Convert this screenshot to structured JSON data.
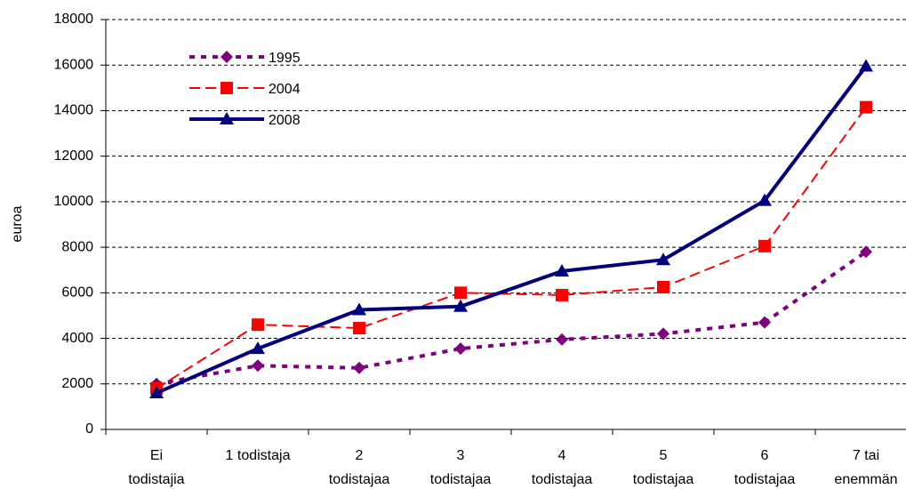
{
  "chart_data": {
    "type": "line",
    "y_label": "euroa",
    "categories": [
      [
        "Ei",
        "todistajia"
      ],
      [
        "1 todistaja"
      ],
      [
        "2",
        "todistajaa"
      ],
      [
        "3",
        "todistajaa"
      ],
      [
        "4",
        "todistajaa"
      ],
      [
        "5",
        "todistajaa"
      ],
      [
        "6",
        "todistajaa"
      ],
      [
        "7 tai",
        "enemmän"
      ]
    ],
    "series": [
      {
        "name": "1995",
        "color": "#800080",
        "values": [
          2000,
          2800,
          2700,
          3550,
          3950,
          4200,
          4700,
          7800
        ]
      },
      {
        "name": "2004",
        "color": "#ff0000",
        "values": [
          1800,
          4600,
          4450,
          6000,
          5900,
          6250,
          8050,
          14150
        ]
      },
      {
        "name": "2008",
        "color": "#000080",
        "values": [
          1600,
          3550,
          5250,
          5400,
          6950,
          7450,
          10050,
          15950
        ]
      }
    ],
    "ylim": [
      0,
      18000
    ],
    "yticks": [
      0,
      2000,
      4000,
      6000,
      8000,
      10000,
      12000,
      14000,
      16000,
      18000
    ],
    "grid": true,
    "legend": "upper left"
  }
}
